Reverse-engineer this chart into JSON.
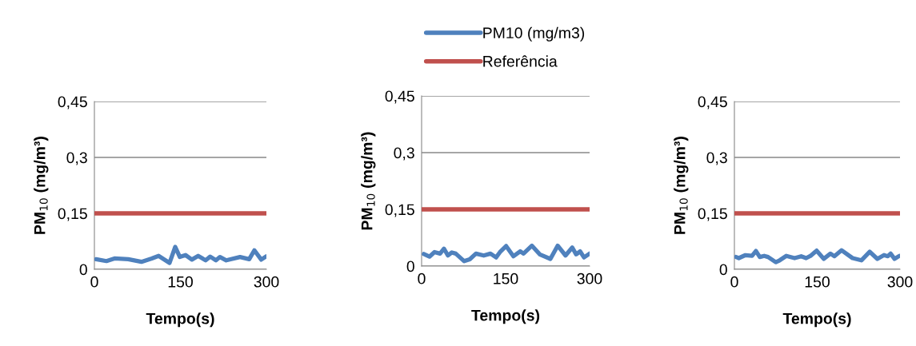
{
  "chart_data": [
    {
      "type": "line",
      "xlabel": "Tempo(s)",
      "ylabel": "PM$_{10}$ (mg/m³)",
      "xlim": [
        0,
        300
      ],
      "xticks": [
        0,
        150,
        300
      ],
      "ylim": [
        0,
        0.45
      ],
      "yticks": [
        {
          "value": 0,
          "label": "0"
        },
        {
          "value": 0.15,
          "label": "0,15"
        },
        {
          "value": 0.3,
          "label": "0,3"
        },
        {
          "value": 0.45,
          "label": "0,45"
        }
      ],
      "grid": "y",
      "legend": false,
      "marker": "none",
      "line_style": "solid",
      "series": [
        {
          "color": "#4f81bd",
          "x": [
            3,
            21,
            35,
            59,
            82,
            100,
            112,
            131,
            141,
            149,
            159,
            170,
            181,
            194,
            202,
            212,
            219,
            230,
            254,
            270,
            279,
            291,
            300
          ],
          "values": [
            0.027,
            0.022,
            0.029,
            0.027,
            0.02,
            0.029,
            0.036,
            0.017,
            0.06,
            0.033,
            0.038,
            0.026,
            0.036,
            0.024,
            0.034,
            0.024,
            0.033,
            0.024,
            0.033,
            0.027,
            0.051,
            0.026,
            0.035
          ]
        },
        {
          "color": "#c0504d",
          "x": [
            0,
            300
          ],
          "values": [
            0.15,
            0.15
          ]
        }
      ]
    },
    {
      "type": "line",
      "xlabel": "Tempo(s)",
      "ylabel": "PM$_{10}$ (mg/m³)",
      "xlim": [
        0,
        300
      ],
      "xticks": [
        0,
        150,
        300
      ],
      "ylim": [
        0,
        0.45
      ],
      "yticks": [
        {
          "value": 0,
          "label": "0"
        },
        {
          "value": 0.15,
          "label": "0,15"
        },
        {
          "value": 0.3,
          "label": "0,3"
        },
        {
          "value": 0.45,
          "label": "0,45"
        }
      ],
      "grid": "y",
      "legend": "top",
      "marker": "none",
      "line_style": "solid",
      "series": [
        {
          "name": "PM10 (mg/m3)",
          "color": "#4f81bd",
          "x": [
            4,
            14,
            23,
            33,
            40,
            47,
            54,
            61,
            76,
            86,
            97,
            111,
            123,
            133,
            140,
            151,
            164,
            176,
            182,
            197,
            211,
            230,
            243,
            257,
            269,
            276,
            283,
            290,
            300
          ],
          "values": [
            0.032,
            0.025,
            0.037,
            0.033,
            0.046,
            0.028,
            0.036,
            0.033,
            0.013,
            0.018,
            0.033,
            0.028,
            0.033,
            0.023,
            0.037,
            0.053,
            0.026,
            0.039,
            0.033,
            0.054,
            0.031,
            0.019,
            0.054,
            0.028,
            0.049,
            0.031,
            0.039,
            0.023,
            0.033
          ]
        },
        {
          "name": "Referência",
          "color": "#c0504d",
          "x": [
            0,
            300
          ],
          "values": [
            0.15,
            0.15
          ]
        }
      ]
    },
    {
      "type": "line",
      "xlabel": "Tempo(s)",
      "ylabel": "PM$_{10}$ (mg/m³)",
      "xlim": [
        0,
        300
      ],
      "xticks": [
        0,
        150,
        300
      ],
      "ylim": [
        0,
        0.45
      ],
      "yticks": [
        {
          "value": 0,
          "label": "0"
        },
        {
          "value": 0.15,
          "label": "0,15"
        },
        {
          "value": 0.3,
          "label": "0,3"
        },
        {
          "value": 0.45,
          "label": "0,45"
        }
      ],
      "grid": "y",
      "legend": false,
      "marker": "none",
      "line_style": "solid",
      "series": [
        {
          "color": "#4f81bd",
          "x": [
            3,
            8,
            20,
            32,
            39,
            46,
            54,
            61,
            75,
            82,
            94,
            109,
            121,
            130,
            138,
            149,
            162,
            174,
            181,
            194,
            214,
            230,
            245,
            259,
            271,
            278,
            283,
            290,
            299
          ],
          "values": [
            0.033,
            0.03,
            0.038,
            0.036,
            0.049,
            0.033,
            0.036,
            0.033,
            0.019,
            0.024,
            0.036,
            0.03,
            0.035,
            0.03,
            0.036,
            0.05,
            0.028,
            0.042,
            0.035,
            0.051,
            0.03,
            0.024,
            0.047,
            0.028,
            0.038,
            0.035,
            0.042,
            0.028,
            0.036
          ]
        },
        {
          "color": "#c0504d",
          "x": [
            0,
            300
          ],
          "values": [
            0.15,
            0.15
          ]
        }
      ]
    }
  ]
}
